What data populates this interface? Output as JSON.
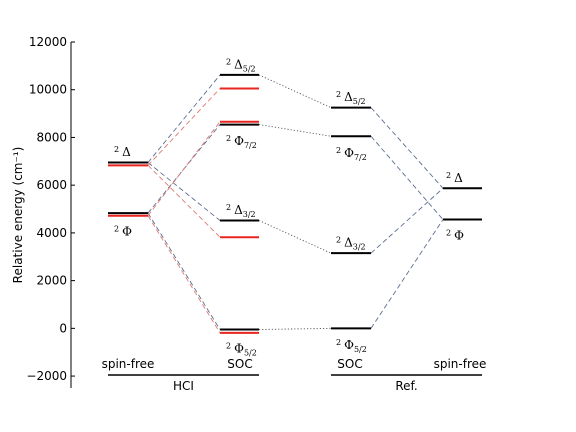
{
  "chart_data": {
    "type": "energy-level diagram",
    "ylabel": "Relative energy (cm⁻¹)",
    "ylim": [
      -2500,
      12000
    ],
    "yticks": [
      -2000,
      0,
      2000,
      4000,
      6000,
      8000,
      10000,
      12000
    ],
    "ytick_labels": [
      "−2000",
      "0",
      "2000",
      "4000",
      "6000",
      "8000",
      "10000",
      "12000"
    ],
    "columns": [
      {
        "id": "hci-spinfree",
        "label": "spin-free"
      },
      {
        "id": "hci-soc",
        "label": "SOC"
      },
      {
        "id": "ref-soc",
        "label": "SOC"
      },
      {
        "id": "ref-spinfree",
        "label": "spin-free"
      }
    ],
    "groups": [
      {
        "id": "hci",
        "label": "HCI",
        "columns": [
          "hci-spinfree",
          "hci-soc"
        ]
      },
      {
        "id": "ref",
        "label": "Ref.",
        "columns": [
          "ref-soc",
          "ref-spinfree"
        ]
      }
    ],
    "levels": [
      {
        "id": "hci-sf-delta-black",
        "column": "hci-spinfree",
        "energy": 6950,
        "color": "#000000"
      },
      {
        "id": "hci-sf-delta-red",
        "column": "hci-spinfree",
        "energy": 6830,
        "color": "#e8251f"
      },
      {
        "id": "hci-sf-phi-black",
        "column": "hci-spinfree",
        "energy": 4830,
        "color": "#000000"
      },
      {
        "id": "hci-sf-phi-red",
        "column": "hci-spinfree",
        "energy": 4720,
        "color": "#e8251f"
      },
      {
        "id": "hci-soc-d52-black",
        "column": "hci-soc",
        "energy": 10620,
        "color": "#000000"
      },
      {
        "id": "hci-soc-d52-red",
        "column": "hci-soc",
        "energy": 10050,
        "color": "#e8251f"
      },
      {
        "id": "hci-soc-p72-red",
        "column": "hci-soc",
        "energy": 8660,
        "color": "#e8251f"
      },
      {
        "id": "hci-soc-p72-black",
        "column": "hci-soc",
        "energy": 8540,
        "color": "#000000"
      },
      {
        "id": "hci-soc-d32-black",
        "column": "hci-soc",
        "energy": 4520,
        "color": "#000000"
      },
      {
        "id": "hci-soc-d32-red",
        "column": "hci-soc",
        "energy": 3820,
        "color": "#e8251f"
      },
      {
        "id": "hci-soc-p52-black",
        "column": "hci-soc",
        "energy": -50,
        "color": "#000000"
      },
      {
        "id": "hci-soc-p52-red",
        "column": "hci-soc",
        "energy": -190,
        "color": "#e8251f"
      },
      {
        "id": "ref-soc-d52",
        "column": "ref-soc",
        "energy": 9250,
        "color": "#000000"
      },
      {
        "id": "ref-soc-p72",
        "column": "ref-soc",
        "energy": 8050,
        "color": "#000000"
      },
      {
        "id": "ref-soc-d32",
        "column": "ref-soc",
        "energy": 3150,
        "color": "#000000"
      },
      {
        "id": "ref-soc-p52",
        "column": "ref-soc",
        "energy": 0,
        "color": "#000000"
      },
      {
        "id": "ref-sf-delta",
        "column": "ref-spinfree",
        "energy": 5870,
        "color": "#000000"
      },
      {
        "id": "ref-sf-phi",
        "column": "ref-spinfree",
        "energy": 4560,
        "color": "#000000"
      }
    ],
    "labels": [
      {
        "id": "lbl-hci-sf-delta",
        "sym": "Δ",
        "sup": "2",
        "sub": "",
        "column": "hci-spinfree",
        "energy": 7400
      },
      {
        "id": "lbl-hci-sf-phi",
        "sym": "Φ",
        "sup": "2",
        "sub": "",
        "column": "hci-spinfree",
        "energy": 4050
      },
      {
        "id": "lbl-hci-soc-d52",
        "sym": "Δ",
        "sup": "2",
        "sub": "5/2",
        "column": "hci-soc",
        "energy": 11050
      },
      {
        "id": "lbl-hci-soc-p72",
        "sym": "Φ",
        "sup": "2",
        "sub": "7/2",
        "column": "hci-soc",
        "energy": 7850
      },
      {
        "id": "lbl-hci-soc-d32",
        "sym": "Δ",
        "sup": "2",
        "sub": "3/2",
        "column": "hci-soc",
        "energy": 4950
      },
      {
        "id": "lbl-hci-soc-p52",
        "sym": "Φ",
        "sup": "2",
        "sub": "5/2",
        "column": "hci-soc",
        "energy": -850
      },
      {
        "id": "lbl-ref-soc-d52",
        "sym": "Δ",
        "sup": "2",
        "sub": "5/2",
        "column": "ref-soc",
        "energy": 9700
      },
      {
        "id": "lbl-ref-soc-p72",
        "sym": "Φ",
        "sup": "2",
        "sub": "7/2",
        "column": "ref-soc",
        "energy": 7350
      },
      {
        "id": "lbl-ref-soc-d32",
        "sym": "Δ",
        "sup": "2",
        "sub": "3/2",
        "column": "ref-soc",
        "energy": 3600
      },
      {
        "id": "lbl-ref-soc-p52",
        "sym": "Φ",
        "sup": "2",
        "sub": "5/2",
        "column": "ref-soc",
        "energy": -700
      },
      {
        "id": "lbl-ref-sf-delta",
        "sym": "Δ",
        "sup": "2",
        "sub": "",
        "column": "ref-spinfree",
        "energy": 6300
      },
      {
        "id": "lbl-ref-sf-phi",
        "sym": "Φ",
        "sup": "2",
        "sub": "",
        "column": "ref-spinfree",
        "energy": 3900
      }
    ],
    "connectors": [
      {
        "from": "hci-sf-delta-black",
        "to": "hci-soc-d52-black",
        "style": "dashed",
        "color": "#5b6f8f"
      },
      {
        "from": "hci-sf-delta-black",
        "to": "hci-soc-d32-black",
        "style": "dashed",
        "color": "#5b6f8f"
      },
      {
        "from": "hci-sf-phi-black",
        "to": "hci-soc-p72-black",
        "style": "dashed",
        "color": "#5b6f8f"
      },
      {
        "from": "hci-sf-phi-black",
        "to": "hci-soc-p52-black",
        "style": "dashed",
        "color": "#5b6f8f"
      },
      {
        "from": "hci-sf-delta-red",
        "to": "hci-soc-d52-red",
        "style": "dashed",
        "color": "#e07a72"
      },
      {
        "from": "hci-sf-delta-red",
        "to": "hci-soc-d32-red",
        "style": "dashed",
        "color": "#e07a72"
      },
      {
        "from": "hci-sf-phi-red",
        "to": "hci-soc-p72-red",
        "style": "dashed",
        "color": "#e07a72"
      },
      {
        "from": "hci-sf-phi-red",
        "to": "hci-soc-p52-red",
        "style": "dashed",
        "color": "#e07a72"
      },
      {
        "from": "hci-soc-d52-black",
        "to": "ref-soc-d52",
        "style": "dotted",
        "color": "#555555"
      },
      {
        "from": "hci-soc-p72-black",
        "to": "ref-soc-p72",
        "style": "dotted",
        "color": "#555555"
      },
      {
        "from": "hci-soc-d32-black",
        "to": "ref-soc-d32",
        "style": "dotted",
        "color": "#555555"
      },
      {
        "from": "hci-soc-p52-black",
        "to": "ref-soc-p52",
        "style": "dotted",
        "color": "#555555"
      },
      {
        "from": "ref-soc-d52",
        "to": "ref-sf-delta",
        "style": "dashed",
        "color": "#5b6f8f"
      },
      {
        "from": "ref-soc-d32",
        "to": "ref-sf-delta",
        "style": "dashed",
        "color": "#5b6f8f"
      },
      {
        "from": "ref-soc-p72",
        "to": "ref-sf-phi",
        "style": "dashed",
        "color": "#5b6f8f"
      },
      {
        "from": "ref-soc-p52",
        "to": "ref-sf-phi",
        "style": "dashed",
        "color": "#5b6f8f"
      }
    ]
  }
}
